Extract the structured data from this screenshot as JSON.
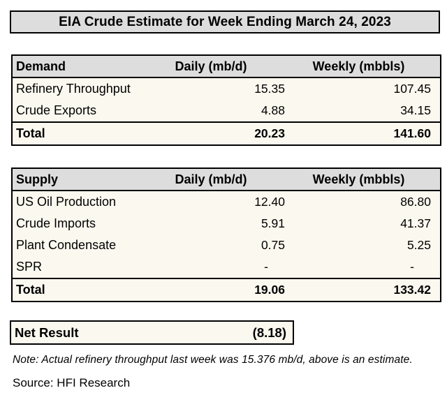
{
  "title": "EIA Crude Estimate for Week Ending March 24, 2023",
  "demand_table": {
    "headers": [
      "Demand",
      "Daily (mb/d)",
      "Weekly (mbbls)"
    ],
    "rows": [
      {
        "label": "Refinery Throughput",
        "daily": "15.35",
        "weekly": "107.45"
      },
      {
        "label": "Crude Exports",
        "daily": "4.88",
        "weekly": "34.15"
      }
    ],
    "total": {
      "label": "Total",
      "daily": "20.23",
      "weekly": "141.60"
    }
  },
  "supply_table": {
    "headers": [
      "Supply",
      "Daily (mb/d)",
      "Weekly (mbbls)"
    ],
    "rows": [
      {
        "label": "US Oil Production",
        "daily": "12.40",
        "weekly": "86.80"
      },
      {
        "label": "Crude Imports",
        "daily": "5.91",
        "weekly": "41.37"
      },
      {
        "label": "Plant Condensate",
        "daily": "0.75",
        "weekly": "5.25"
      },
      {
        "label": "SPR",
        "daily": "-",
        "weekly": "-"
      }
    ],
    "total": {
      "label": "Total",
      "daily": "19.06",
      "weekly": "133.42"
    }
  },
  "net_result": {
    "label": "Net Result",
    "value": "(8.18)"
  },
  "note": "Note: Actual refinery throughput last week was 15.376 mb/d, above is an estimate.",
  "source": "Source: HFI Research",
  "colors": {
    "page_bg": "#ffffff",
    "header_bg": "#dddddd",
    "body_bg": "#fbf8ef",
    "border": "#000000",
    "text": "#000000"
  },
  "chart_data": [
    {
      "type": "table",
      "title": "EIA Crude Estimate for Week Ending March 24, 2023",
      "section": "Demand",
      "columns": [
        "Demand",
        "Daily (mb/d)",
        "Weekly (mbbls)"
      ],
      "rows": [
        [
          "Refinery Throughput",
          15.35,
          107.45
        ],
        [
          "Crude Exports",
          4.88,
          34.15
        ],
        [
          "Total",
          20.23,
          141.6
        ]
      ]
    },
    {
      "type": "table",
      "section": "Supply",
      "columns": [
        "Supply",
        "Daily (mb/d)",
        "Weekly (mbbls)"
      ],
      "rows": [
        [
          "US Oil Production",
          12.4,
          86.8
        ],
        [
          "Crude Imports",
          5.91,
          41.37
        ],
        [
          "Plant Condensate",
          0.75,
          5.25
        ],
        [
          "SPR",
          "-",
          "-"
        ],
        [
          "Total",
          19.06,
          133.42
        ]
      ]
    },
    {
      "type": "table",
      "section": "Net Result",
      "columns": [
        "Label",
        "Value"
      ],
      "rows": [
        [
          "Net Result",
          "(8.18)"
        ]
      ],
      "annotations": [
        "Note: Actual refinery throughput last week was 15.376 mb/d, above is an estimate.",
        "Source: HFI Research"
      ]
    }
  ]
}
